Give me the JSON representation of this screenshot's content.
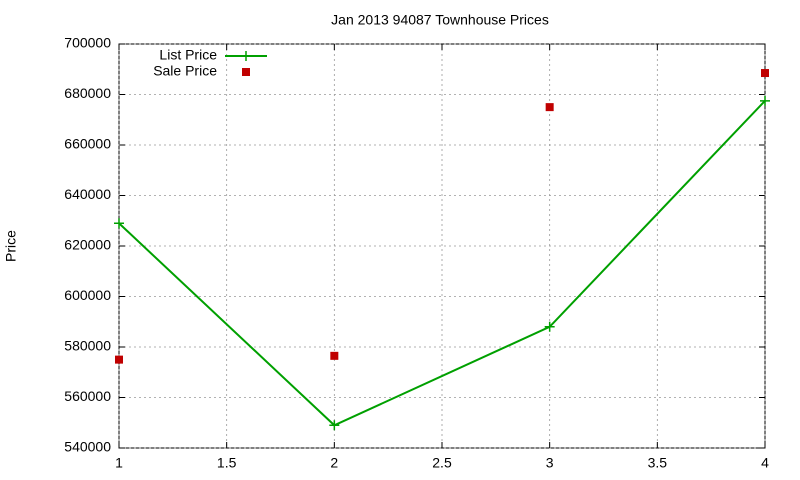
{
  "chart_data": {
    "type": "line",
    "title": "Jan 2013 94087 Townhouse Prices",
    "y_label": "Price",
    "x": [
      1,
      2,
      3,
      4
    ],
    "series": [
      {
        "name": "List Price",
        "color": "#00a000",
        "marker": "plus",
        "line": true,
        "values": [
          629000,
          549000,
          588000,
          677500
        ]
      },
      {
        "name": "Sale Price",
        "color": "#c00000",
        "marker": "square",
        "line": false,
        "values": [
          575000,
          576500,
          675000,
          688500
        ]
      }
    ],
    "xlim": [
      1,
      4
    ],
    "xticks": [
      1,
      1.5,
      2,
      2.5,
      3,
      3.5,
      4
    ],
    "ylim": [
      540000,
      700000
    ],
    "yticks": [
      540000,
      560000,
      580000,
      600000,
      620000,
      640000,
      660000,
      680000,
      700000
    ],
    "grid": true,
    "legend": "top-left"
  }
}
